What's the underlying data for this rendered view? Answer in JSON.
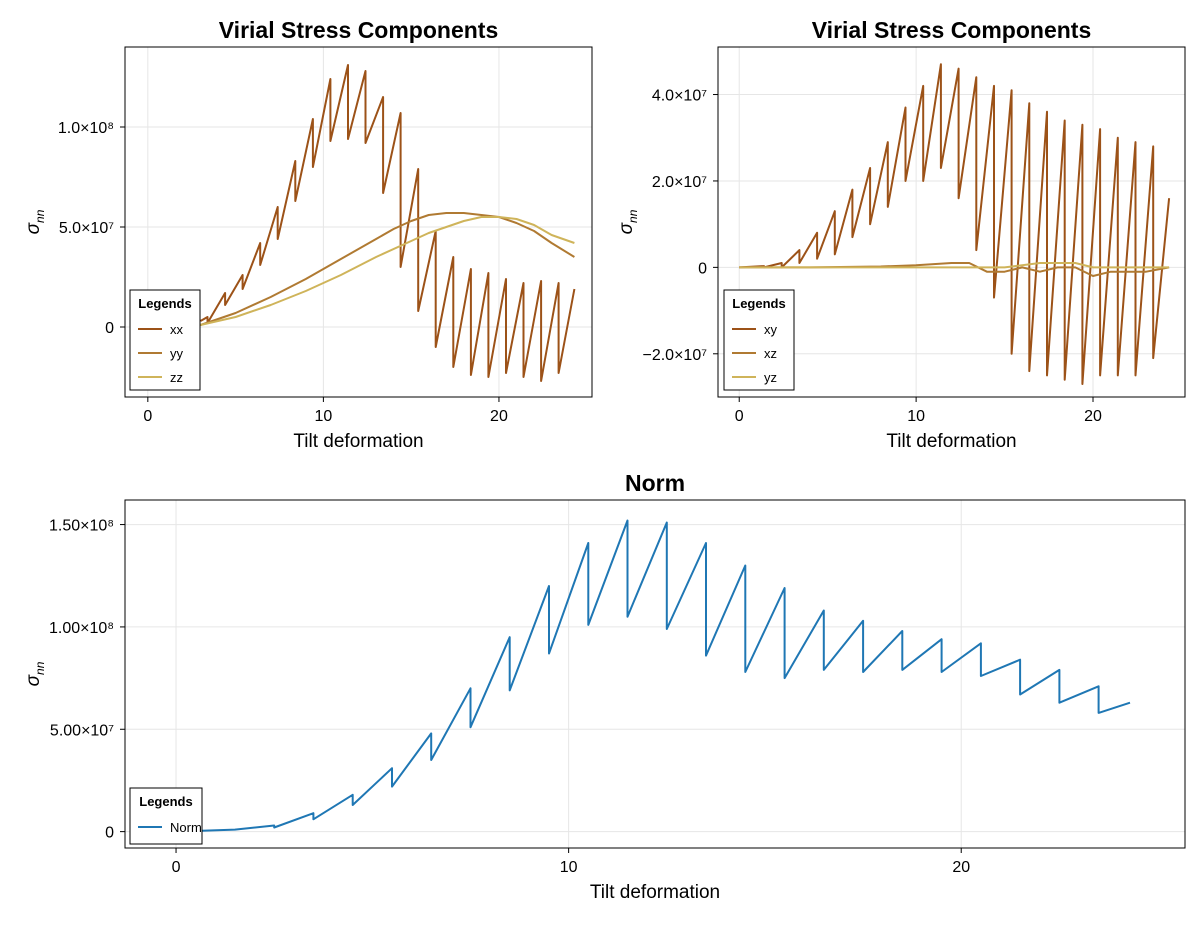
{
  "chart_data": [
    {
      "id": "tl",
      "type": "line",
      "title": "Virial Stress Components",
      "xlabel": "Tilt deformation",
      "ylabel": "σ_nn",
      "xlim": [
        -1.3,
        25.3
      ],
      "ylim": [
        -35000000,
        140000000
      ],
      "xticks": [
        0,
        10,
        20
      ],
      "xtick_labels": [
        "0",
        "10",
        "20"
      ],
      "yticks": [
        0,
        50000000,
        100000000
      ],
      "ytick_labels": [
        "0",
        "5.0×10⁷",
        "1.0×10⁸"
      ],
      "grid": true,
      "legend": {
        "title": "Legends",
        "position": "bottom-left"
      },
      "series": [
        {
          "name": "xx",
          "color": "#9c5218",
          "x": [
            3.0,
            3.4,
            3.4,
            4.4,
            4.4,
            5.4,
            5.4,
            6.4,
            6.4,
            7.4,
            7.4,
            8.4,
            8.4,
            9.4,
            9.4,
            10.4,
            10.4,
            11.4,
            11.4,
            12.4,
            12.4,
            13.4,
            13.4,
            14.4,
            14.4,
            15.4,
            15.4,
            16.4,
            16.4,
            17.4,
            17.4,
            18.4,
            18.4,
            19.4,
            19.4,
            20.4,
            20.4,
            21.4,
            21.4,
            22.4,
            22.4,
            23.4,
            23.4,
            24.3
          ],
          "y": [
            3000000,
            5000000,
            2000000,
            17000000,
            11000000,
            26000000,
            19000000,
            42000000,
            31000000,
            60000000,
            44000000,
            83000000,
            63000000,
            104000000,
            80000000,
            124000000,
            93000000,
            131000000,
            94000000,
            128000000,
            92000000,
            115000000,
            67000000,
            107000000,
            30000000,
            79000000,
            8000000,
            48000000,
            -10000000,
            35000000,
            -20000000,
            29000000,
            -24000000,
            27000000,
            -25000000,
            24000000,
            -23000000,
            22000000,
            -25000000,
            23000000,
            -27000000,
            22000000,
            -23000000,
            19000000
          ]
        },
        {
          "name": "yy",
          "color": "#b07a32",
          "x": [
            3.0,
            5.0,
            7.0,
            9.0,
            11.0,
            13.0,
            14.0,
            15.0,
            16.0,
            17.0,
            18.0,
            19.0,
            20.0,
            21.0,
            22.0,
            23.0,
            24.3
          ],
          "y": [
            1000000,
            7000000,
            15000000,
            24000000,
            34000000,
            44000000,
            49000000,
            53000000,
            56000000,
            57000000,
            57000000,
            56000000,
            55000000,
            52000000,
            48000000,
            42000000,
            35000000
          ]
        },
        {
          "name": "zz",
          "color": "#cfb45a",
          "x": [
            3.0,
            5.0,
            7.0,
            9.0,
            11.0,
            13.0,
            15.0,
            16.0,
            17.0,
            18.0,
            19.0,
            20.0,
            21.0,
            22.0,
            23.0,
            24.3
          ],
          "y": [
            1000000,
            5000000,
            11000000,
            18000000,
            26000000,
            35000000,
            43000000,
            47000000,
            50000000,
            53000000,
            55000000,
            55000000,
            54000000,
            51000000,
            46000000,
            42000000
          ]
        }
      ]
    },
    {
      "id": "tr",
      "type": "line",
      "title": "Virial Stress Components",
      "xlabel": "Tilt deformation",
      "ylabel": "σ_nn",
      "xlim": [
        -1.2,
        25.2
      ],
      "ylim": [
        -30000000,
        51000000
      ],
      "xticks": [
        0,
        10,
        20
      ],
      "xtick_labels": [
        "0",
        "10",
        "20"
      ],
      "yticks": [
        -20000000,
        0,
        20000000,
        40000000
      ],
      "ytick_labels": [
        "−2.0×10⁷",
        "0",
        "2.0×10⁷",
        "4.0×10⁷"
      ],
      "grid": true,
      "legend": {
        "title": "Legends",
        "position": "bottom-left"
      },
      "series": [
        {
          "name": "xy",
          "color": "#9c5218",
          "x": [
            0,
            1.4,
            1.4,
            2.4,
            2.4,
            3.4,
            3.4,
            4.4,
            4.4,
            5.4,
            5.4,
            6.4,
            6.4,
            7.4,
            7.4,
            8.4,
            8.4,
            9.4,
            9.4,
            10.4,
            10.4,
            11.4,
            11.4,
            12.4,
            12.4,
            13.4,
            13.4,
            14.4,
            14.4,
            15.4,
            15.4,
            16.4,
            16.4,
            17.4,
            17.4,
            18.4,
            18.4,
            19.4,
            19.4,
            20.4,
            20.4,
            21.4,
            21.4,
            22.4,
            22.4,
            23.4,
            23.4,
            24.3
          ],
          "y": [
            0,
            300000,
            0,
            1000000,
            0,
            4000000,
            1000000,
            8000000,
            2000000,
            13000000,
            3000000,
            18000000,
            7000000,
            23000000,
            10000000,
            29000000,
            14000000,
            37000000,
            20000000,
            42000000,
            20000000,
            47000000,
            23000000,
            46000000,
            16000000,
            44000000,
            4000000,
            42000000,
            -7000000,
            41000000,
            -20000000,
            38000000,
            -24000000,
            36000000,
            -25000000,
            34000000,
            -26000000,
            33000000,
            -27000000,
            32000000,
            -25000000,
            30000000,
            -25000000,
            29000000,
            -25000000,
            28000000,
            -21000000,
            16000000
          ]
        },
        {
          "name": "xz",
          "color": "#b07a32",
          "x": [
            0,
            4,
            8,
            10,
            12,
            13,
            14,
            15,
            16,
            17,
            18,
            19,
            20,
            21,
            22,
            23,
            24.3
          ],
          "y": [
            0,
            0,
            200000,
            500000,
            1000000,
            1000000,
            -1000000,
            -1000000,
            0,
            -1000000,
            0,
            0,
            -2000000,
            -1000000,
            -1000000,
            -1000000,
            0
          ]
        },
        {
          "name": "yz",
          "color": "#cfb45a",
          "x": [
            0,
            5,
            10,
            13,
            15,
            17,
            19,
            20,
            21,
            22,
            23,
            24.3
          ],
          "y": [
            0,
            0,
            0,
            0,
            0,
            1000000,
            1000000,
            0,
            0,
            0,
            0,
            0
          ]
        }
      ]
    },
    {
      "id": "bottom",
      "type": "line",
      "title": "Norm",
      "xlabel": "Tilt deformation",
      "ylabel": "σ_nn",
      "xlim": [
        -1.3,
        25.7
      ],
      "ylim": [
        -8000000,
        162000000
      ],
      "xticks": [
        0,
        10,
        20
      ],
      "xtick_labels": [
        "0",
        "10",
        "20"
      ],
      "yticks": [
        0,
        50000000,
        100000000,
        150000000
      ],
      "ytick_labels": [
        "0",
        "5.00×10⁷",
        "1.00×10⁸",
        "1.50×10⁸"
      ],
      "grid": true,
      "legend": {
        "title": "Legends",
        "position": "bottom-left"
      },
      "series": [
        {
          "name": "Norm",
          "color": "#1f77b4",
          "x": [
            0,
            1.5,
            2.5,
            2.5,
            3.5,
            3.5,
            4.5,
            4.5,
            5.5,
            5.5,
            6.5,
            6.5,
            7.5,
            7.5,
            8.5,
            8.5,
            9.5,
            9.5,
            10.5,
            10.5,
            11.5,
            11.5,
            12.5,
            12.5,
            13.5,
            13.5,
            14.5,
            14.5,
            15.5,
            15.5,
            16.5,
            16.5,
            17.5,
            17.5,
            18.5,
            18.5,
            19.5,
            19.5,
            20.5,
            20.5,
            21.5,
            21.5,
            22.5,
            22.5,
            23.5,
            23.5,
            24.3
          ],
          "y": [
            0,
            1000000,
            3000000,
            2000000,
            9000000,
            6000000,
            18000000,
            13000000,
            31000000,
            22000000,
            48000000,
            35000000,
            70000000,
            51000000,
            95000000,
            69000000,
            120000000,
            87000000,
            141000000,
            101000000,
            152000000,
            105000000,
            151000000,
            99000000,
            141000000,
            86000000,
            130000000,
            78000000,
            119000000,
            75000000,
            108000000,
            79000000,
            103000000,
            78000000,
            98000000,
            79000000,
            94000000,
            78000000,
            92000000,
            76000000,
            84000000,
            67000000,
            79000000,
            63000000,
            71000000,
            58000000,
            63000000
          ]
        }
      ]
    }
  ]
}
